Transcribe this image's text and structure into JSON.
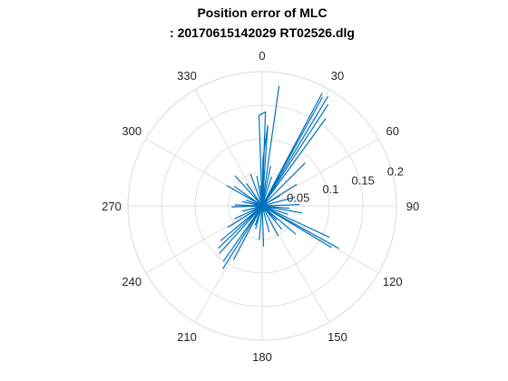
{
  "chart_data": {
    "type": "polar-line",
    "title_line1": "Position error of MLC",
    "title_line2": ": 20170615142029 RT02526.dlg",
    "theta_zero": "top",
    "theta_direction": "clockwise",
    "theta_ticks": [
      "0",
      "30",
      "60",
      "90",
      "120",
      "150",
      "180",
      "210",
      "240",
      "270",
      "300",
      "330"
    ],
    "r_ticks": [
      "0.05",
      "0.1",
      "0.15",
      "0.2"
    ],
    "r_tick_values": [
      0.05,
      0.1,
      0.15,
      0.2
    ],
    "r_range": [
      0,
      0.2
    ],
    "grid": true,
    "line_color": "#0072BD",
    "grid_color": "#d9d9d9",
    "series": [
      {
        "points": [
          [
            0,
            0
          ],
          [
            2,
            0.14
          ],
          [
            -2,
            0.135
          ],
          [
            0,
            0
          ],
          [
            4,
            0.12
          ],
          [
            1,
            0.07
          ],
          [
            0,
            0
          ],
          [
            8,
            0.18
          ],
          [
            0,
            0
          ],
          [
            28,
            0.19
          ],
          [
            0,
            0
          ],
          [
            29,
            0.185
          ],
          [
            0,
            0
          ],
          [
            31,
            0.19
          ],
          [
            0,
            0
          ],
          [
            33,
            0.18
          ],
          [
            0,
            0
          ],
          [
            36,
            0.16
          ],
          [
            0,
            0
          ],
          [
            45,
            0.09
          ],
          [
            0,
            0
          ],
          [
            58,
            0.06
          ],
          [
            0,
            0
          ],
          [
            75,
            0.05
          ],
          [
            0,
            0
          ],
          [
            88,
            0.055
          ],
          [
            0,
            0
          ],
          [
            95,
            0.04
          ],
          [
            0,
            0
          ],
          [
            100,
            0.06
          ],
          [
            0,
            0
          ],
          [
            108,
            0.04
          ],
          [
            0,
            0
          ],
          [
            115,
            0.11
          ],
          [
            0,
            0
          ],
          [
            119,
            0.13
          ],
          [
            0,
            0
          ],
          [
            121,
            0.12
          ],
          [
            0,
            0
          ],
          [
            130,
            0.065
          ],
          [
            0,
            0
          ],
          [
            140,
            0.045
          ],
          [
            0,
            0
          ],
          [
            152,
            0.05
          ],
          [
            0,
            0
          ],
          [
            165,
            0.04
          ],
          [
            0,
            0
          ],
          [
            178,
            0.06
          ],
          [
            0,
            0
          ],
          [
            185,
            0.05
          ],
          [
            0,
            0
          ],
          [
            196,
            0.035
          ],
          [
            0,
            0
          ],
          [
            208,
            0.09
          ],
          [
            0,
            0
          ],
          [
            212,
            0.11
          ],
          [
            0,
            0
          ],
          [
            215,
            0.1
          ],
          [
            0,
            0
          ],
          [
            222,
            0.095
          ],
          [
            0,
            0
          ],
          [
            226,
            0.09
          ],
          [
            0,
            0
          ],
          [
            230,
            0.08
          ],
          [
            0,
            0
          ],
          [
            238,
            0.06
          ],
          [
            0,
            0
          ],
          [
            245,
            0.045
          ],
          [
            0,
            0
          ],
          [
            255,
            0.03
          ],
          [
            0,
            0
          ],
          [
            268,
            0.045
          ],
          [
            0,
            0
          ],
          [
            272,
            0.04
          ],
          [
            0,
            0
          ],
          [
            282,
            0.03
          ],
          [
            0,
            0
          ],
          [
            300,
            0.06
          ],
          [
            0,
            0
          ],
          [
            305,
            0.05
          ],
          [
            0,
            0
          ],
          [
            318,
            0.06
          ],
          [
            0,
            0
          ],
          [
            325,
            0.04
          ],
          [
            0,
            0
          ],
          [
            340,
            0.05
          ],
          [
            0,
            0
          ],
          [
            350,
            0.045
          ],
          [
            0,
            0
          ],
          [
            355,
            0.03
          ],
          [
            0,
            0
          ],
          [
            12,
            0.06
          ],
          [
            0,
            0
          ],
          [
            18,
            0.045
          ],
          [
            0,
            0
          ],
          [
            60,
            0.03
          ],
          [
            0,
            0
          ],
          [
            135,
            0.03
          ],
          [
            0,
            0
          ],
          [
            200,
            0.03
          ],
          [
            0,
            0
          ],
          [
            290,
            0.025
          ],
          [
            0,
            0
          ]
        ]
      }
    ]
  }
}
